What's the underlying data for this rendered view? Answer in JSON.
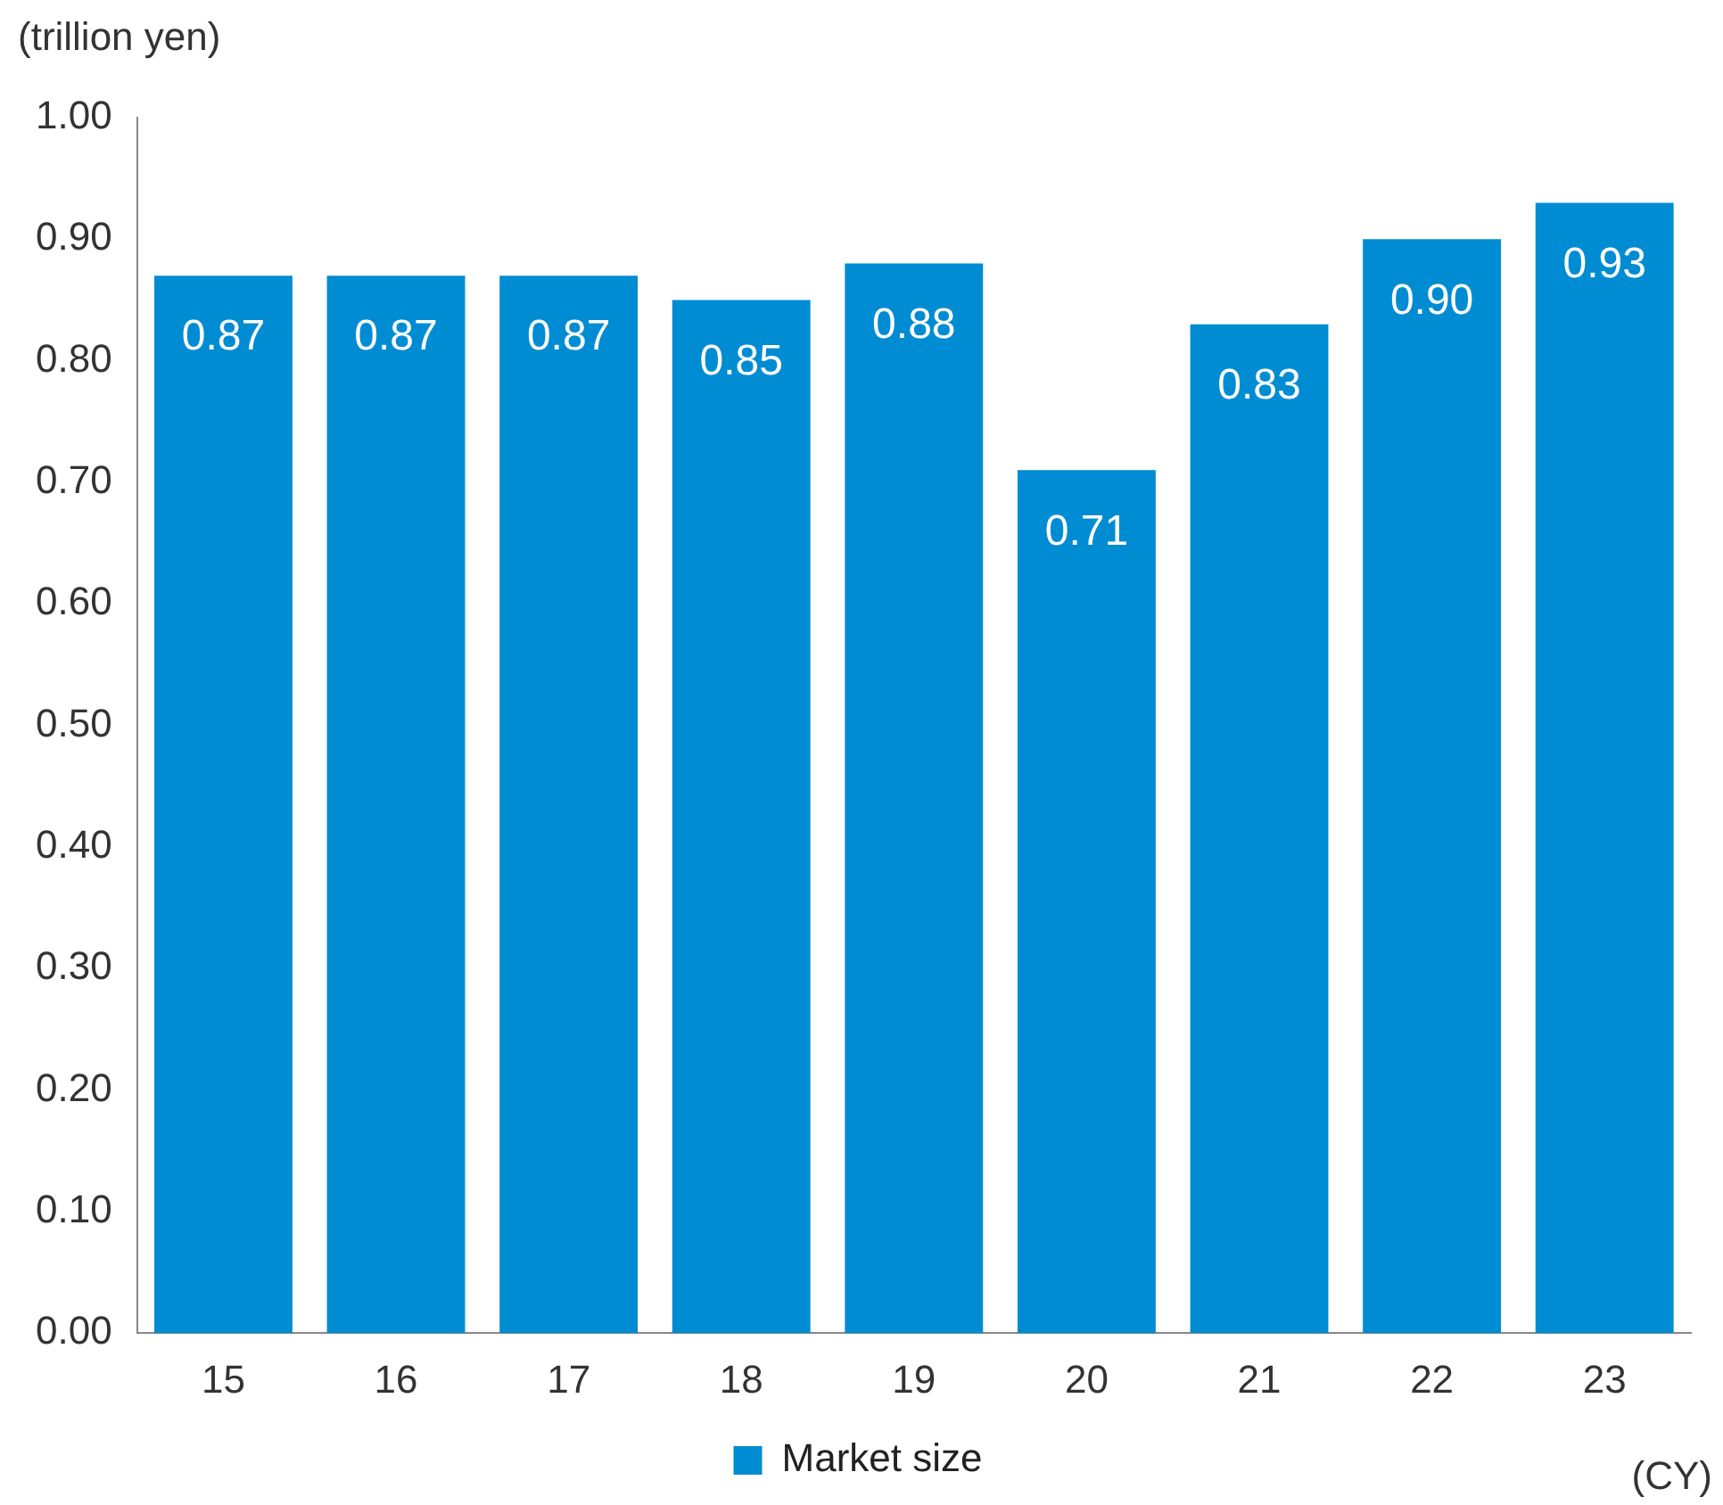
{
  "chart_data": {
    "type": "bar",
    "ylabel": "(trillion yen)",
    "xlabel": "(CY)",
    "categories": [
      "15",
      "16",
      "17",
      "18",
      "19",
      "20",
      "21",
      "22",
      "23"
    ],
    "series": [
      {
        "name": "Market size",
        "color": "#008cd2",
        "values": [
          0.87,
          0.87,
          0.87,
          0.85,
          0.88,
          0.71,
          0.83,
          0.9,
          0.93
        ],
        "value_labels": [
          "0.87",
          "0.87",
          "0.87",
          "0.85",
          "0.88",
          "0.71",
          "0.83",
          "0.90",
          "0.93"
        ]
      }
    ],
    "ylim": [
      0,
      1
    ],
    "yticks": [
      {
        "value": 0,
        "label": "0.00"
      },
      {
        "value": 0.1,
        "label": "0.10"
      },
      {
        "value": 0.2,
        "label": "0.20"
      },
      {
        "value": 0.3,
        "label": "0.30"
      },
      {
        "value": 0.4,
        "label": "0.40"
      },
      {
        "value": 0.5,
        "label": "0.50"
      },
      {
        "value": 0.6,
        "label": "0.60"
      },
      {
        "value": 0.7,
        "label": "0.70"
      },
      {
        "value": 0.8,
        "label": "0.80"
      },
      {
        "value": 0.9,
        "label": "0.90"
      },
      {
        "value": 1,
        "label": "1.00"
      }
    ],
    "grid": false,
    "legend": "bottom"
  }
}
